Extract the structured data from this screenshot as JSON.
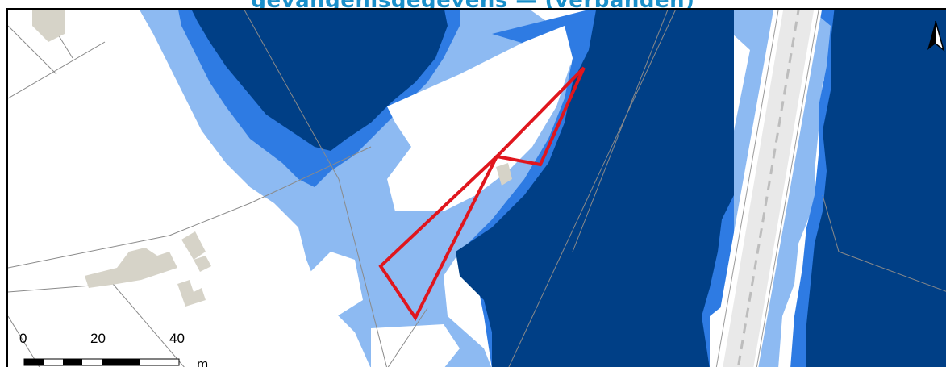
{
  "title": "gevangenisgegevens — . . . (. . . . .   . . . .)",
  "title_visible": "gevangenisgegevens — (verbanden)",
  "scale_bar": {
    "ticks": [
      "0",
      "20",
      "40"
    ],
    "unit": "m"
  },
  "north_arrow": {
    "label": "north-arrow"
  },
  "colors": {
    "deep_water": "#003f86",
    "medium_water": "#2e7be3",
    "shallow_water": "#8dbaf2",
    "building": "#d6d3c8",
    "parcel_line": "#8a8a8a",
    "highlight_polygon": "#e0161d",
    "title": "#1a8fc9"
  }
}
